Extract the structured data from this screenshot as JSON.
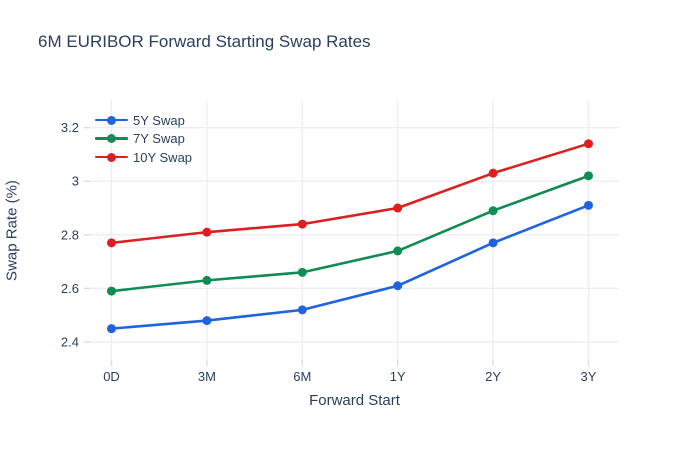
{
  "title": "6M EURIBOR Forward Starting Swap Rates",
  "axes": {
    "x_title": "Forward Start",
    "y_title": "Swap Rate (%)"
  },
  "legend": {
    "items": [
      {
        "label": "5Y Swap",
        "color": "#1f63e0"
      },
      {
        "label": "7Y Swap",
        "color": "#0e8c54"
      },
      {
        "label": "10Y Swap",
        "color": "#dc2020"
      }
    ]
  },
  "colors": {
    "text": "#2a3f5f",
    "grid": "#e9eef6",
    "tick": "#d6dce6",
    "background": "#ffffff"
  },
  "chart_data": {
    "type": "line",
    "title": "6M EURIBOR Forward Starting Swap Rates",
    "categories": [
      "0D",
      "3M",
      "6M",
      "1Y",
      "2Y",
      "3Y"
    ],
    "series": [
      {
        "name": "5Y Swap",
        "color": "#1f63e0",
        "values": [
          2.45,
          2.48,
          2.52,
          2.61,
          2.77,
          2.91
        ]
      },
      {
        "name": "7Y Swap",
        "color": "#0e8c54",
        "values": [
          2.59,
          2.63,
          2.66,
          2.74,
          2.89,
          3.02
        ]
      },
      {
        "name": "10Y Swap",
        "color": "#dc2020",
        "values": [
          2.77,
          2.81,
          2.84,
          2.9,
          3.03,
          3.14
        ]
      }
    ],
    "xlabel": "Forward Start",
    "ylabel": "Swap Rate (%)",
    "ylim": [
      2.333,
      3.303
    ],
    "yticks": [
      {
        "v": 2.4,
        "label": "2.4"
      },
      {
        "v": 2.6,
        "label": "2.6"
      },
      {
        "v": 2.8,
        "label": "2.8"
      },
      {
        "v": 3.0,
        "label": "3"
      },
      {
        "v": 3.2,
        "label": "3.2"
      }
    ],
    "grid": "both",
    "legend_position": "inside-top-left",
    "marker": "circle",
    "line_width": 2.6,
    "marker_radius": 4.5
  }
}
